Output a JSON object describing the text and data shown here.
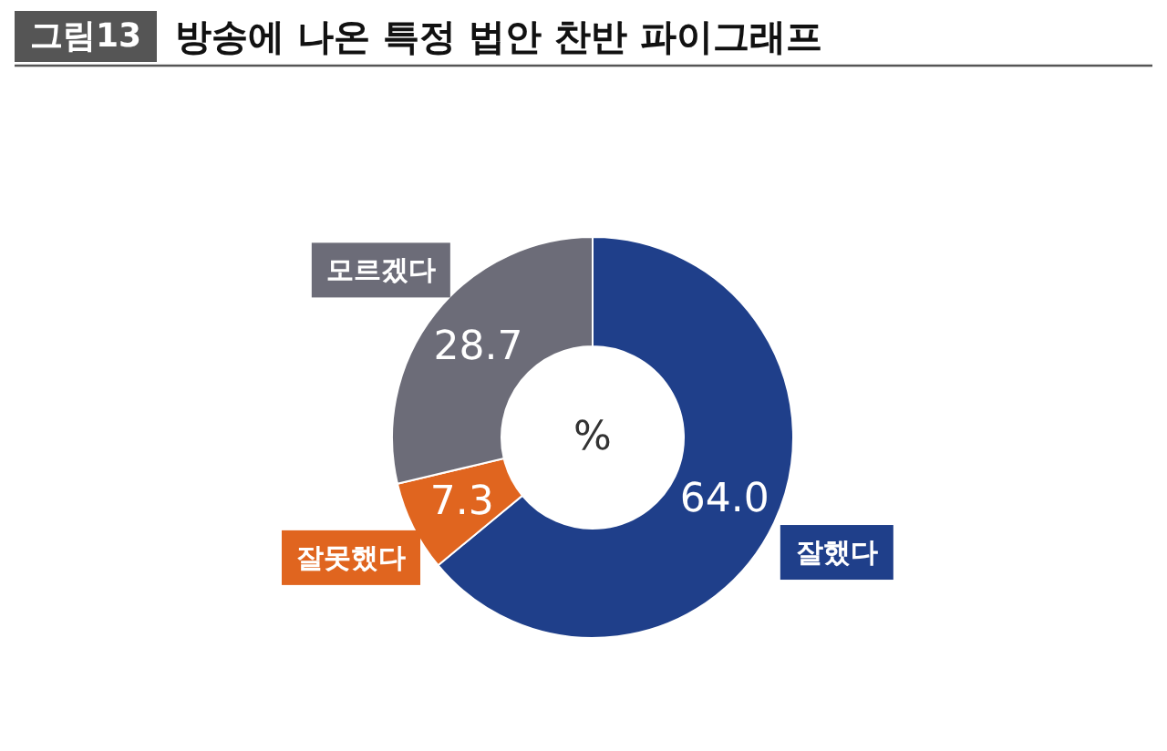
{
  "chart_data": {
    "type": "donut",
    "title": "방송에 나온 특정 법안 찬반 파이그래프",
    "categories": [
      "잘했다",
      "잘못했다",
      "모르겠다"
    ],
    "values": [
      64.0,
      7.3,
      28.7
    ],
    "value_labels": [
      "64.0",
      "7.3",
      "28.7"
    ],
    "colors": [
      "#1f3f8a",
      "#e0651f",
      "#6c6c78"
    ],
    "annotations": [
      "그림13",
      "%"
    ]
  }
}
